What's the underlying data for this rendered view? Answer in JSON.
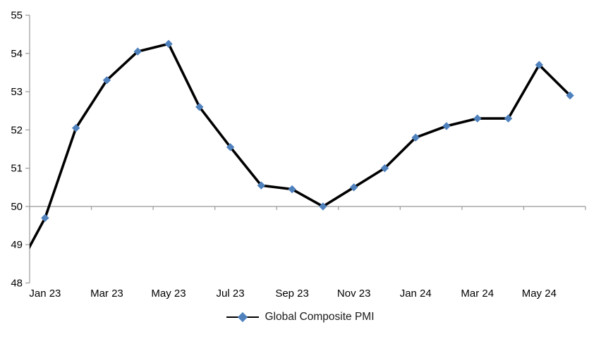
{
  "chart_data": {
    "type": "line",
    "title": "",
    "categories": [
      "Jan 23",
      "Feb 23",
      "Mar 23",
      "Apr 23",
      "May 23",
      "Jun 23",
      "Jul 23",
      "Aug 23",
      "Sep 23",
      "Oct 23",
      "Nov 23",
      "Dec 23",
      "Jan 24",
      "Feb 24",
      "Mar 24",
      "Apr 24",
      "May 24",
      "Jun 24"
    ],
    "series": [
      {
        "name": "Global Composite PMI",
        "values": [
          49.7,
          52.05,
          53.3,
          54.05,
          54.25,
          52.6,
          51.55,
          50.55,
          50.45,
          50.0,
          50.5,
          51.0,
          51.8,
          52.1,
          52.3,
          52.3,
          53.7,
          52.9
        ],
        "lead_in_clipped": {
          "category": "Dec 22",
          "value": 48.2
        },
        "line_color": "#000000",
        "marker": "diamond",
        "marker_color": "#4F81BD"
      }
    ],
    "x_tick_labels": [
      "Jan 23",
      "Mar 23",
      "May 23",
      "Jul 23",
      "Sep 23",
      "Nov 23",
      "Jan 24",
      "Mar 24",
      "May 24"
    ],
    "x_label_every": 2,
    "y_ticks": [
      55,
      54,
      53,
      52,
      51,
      50,
      49,
      48
    ],
    "ylim": [
      48,
      55
    ],
    "x_axis_cross_at": 50,
    "grid": "off",
    "legend": {
      "position": "bottom",
      "label": "Global Composite PMI"
    },
    "axis_color": "#a0a0a0",
    "text_color": "#000000"
  }
}
